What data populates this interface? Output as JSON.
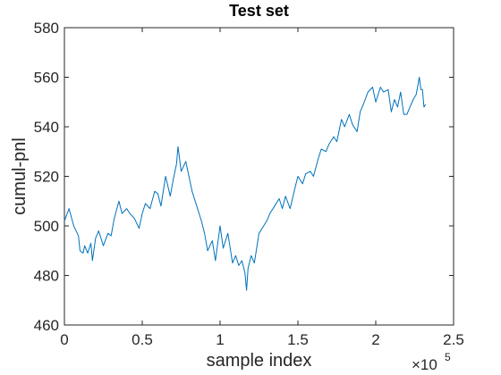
{
  "chart_data": {
    "type": "line",
    "title": "Test set",
    "xlabel": "sample index",
    "ylabel": "cumul-pnl",
    "x_exponent_label": {
      "base": "×10",
      "exp": "5"
    },
    "xlim": [
      0,
      250000
    ],
    "ylim": [
      460,
      580
    ],
    "x_ticks": [
      0,
      50000,
      100000,
      150000,
      200000,
      250000
    ],
    "x_tick_labels": [
      "0",
      "0.5",
      "1",
      "1.5",
      "2",
      "2.5"
    ],
    "y_ticks": [
      460,
      480,
      500,
      520,
      540,
      560,
      580
    ],
    "y_tick_labels": [
      "460",
      "480",
      "500",
      "520",
      "540",
      "560",
      "580"
    ],
    "grid": false,
    "line_color": "#0072BD",
    "series": [
      {
        "x": [
          0,
          3000,
          6000,
          9000,
          10000,
          12000,
          13000,
          15000,
          17000,
          18000,
          20000,
          22000,
          25000,
          28000,
          30000,
          32000,
          35000,
          37000,
          40000,
          42000,
          45000,
          48000,
          50000,
          52000,
          55000,
          58000,
          60000,
          62000,
          65000,
          68000,
          70000,
          72000,
          73000,
          75000,
          78000,
          80000,
          82000,
          85000,
          88000,
          90000,
          92000,
          95000,
          97000,
          100000,
          102000,
          105000,
          108000,
          110000,
          112000,
          114000,
          116000,
          117000,
          118000,
          120000,
          122000,
          125000,
          128000,
          130000,
          132000,
          135000,
          138000,
          140000,
          142000,
          145000,
          148000,
          150000,
          153000,
          155000,
          158000,
          160000,
          163000,
          165000,
          168000,
          170000,
          173000,
          175000,
          178000,
          180000,
          183000,
          185000,
          188000,
          190000,
          192000,
          195000,
          198000,
          200000,
          203000,
          205000,
          208000,
          210000,
          212000,
          214000,
          216000,
          218000,
          220000,
          222000,
          224000,
          226000,
          228000,
          229000,
          230000,
          231000,
          232000
        ],
        "y": [
          502,
          507,
          500,
          496,
          490,
          489,
          492,
          489,
          493,
          486,
          495,
          498,
          492,
          497,
          496,
          503,
          510,
          505,
          507,
          505,
          503,
          499,
          505,
          509,
          507,
          514,
          513,
          508,
          520,
          512,
          519,
          525,
          532,
          522,
          526,
          520,
          514,
          508,
          502,
          497,
          490,
          494,
          486,
          500,
          491,
          497,
          485,
          488,
          484,
          486,
          481,
          474,
          483,
          488,
          485,
          497,
          500,
          502,
          505,
          508,
          511,
          507,
          512,
          507,
          515,
          520,
          517,
          521,
          522,
          520,
          527,
          531,
          530,
          533,
          536,
          534,
          543,
          540,
          545,
          541,
          538,
          546,
          549,
          554,
          556,
          550,
          556,
          554,
          555,
          546,
          551,
          548,
          554,
          545,
          545,
          548,
          551,
          553,
          560,
          555,
          555,
          548,
          549
        ]
      }
    ]
  }
}
